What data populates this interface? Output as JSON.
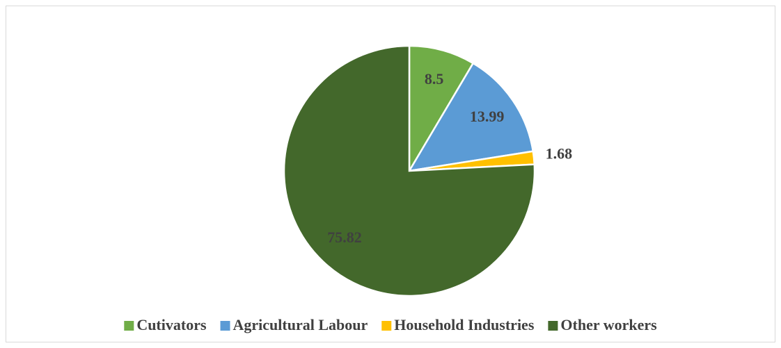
{
  "chart_data": {
    "type": "pie",
    "categories": [
      "Cutivators",
      "Agricultural Labour",
      "Household Industries",
      "Other workers"
    ],
    "values": [
      8.5,
      13.99,
      1.68,
      75.82
    ],
    "colors": [
      "#70ad47",
      "#5b9bd5",
      "#ffc000",
      "#43682b"
    ],
    "legend": "bottom"
  }
}
